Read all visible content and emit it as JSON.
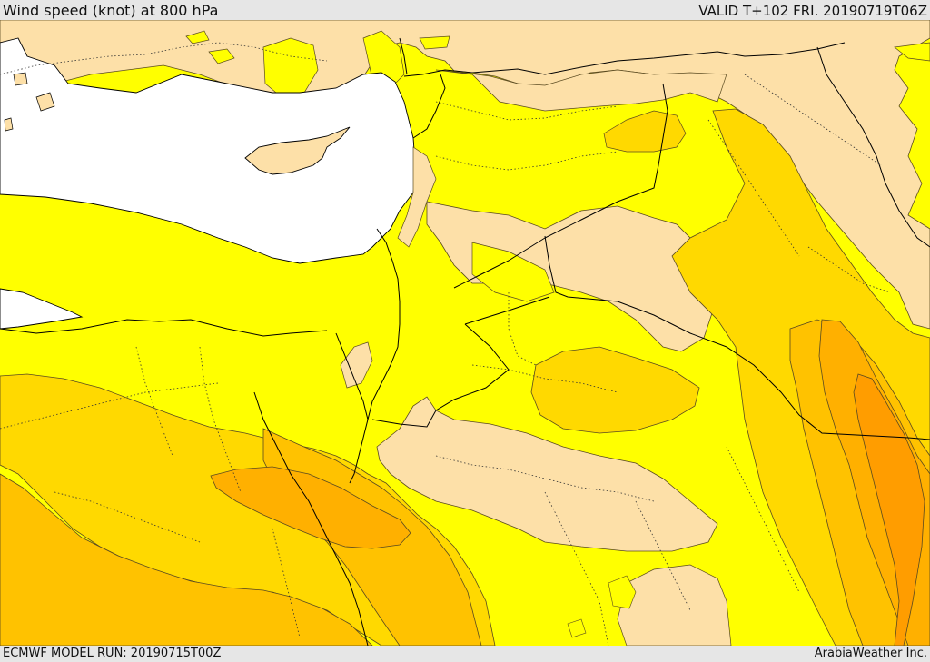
{
  "header": {
    "title": "Wind speed (knot) at 800 hPa",
    "valid_time": "VALID T+102 FRI. 20190719T06Z"
  },
  "footer": {
    "model_run": "ECMWF MODEL RUN: 20190715T00Z",
    "credit": "ArabiaWeather Inc."
  },
  "map": {
    "variable": "wind speed",
    "units": "knot",
    "pressure_level": "800 hPa",
    "shading_colors": {
      "sea": "#ffffff",
      "lowest": "#fde0a8",
      "level_2": "#ffff00",
      "level_3": "#ffd900",
      "level_4": "#ffc200",
      "level_5": "#ffb000",
      "level_6": "#ff9d00"
    },
    "line_colors": {
      "country_border": "#000000",
      "province_border": "#333333",
      "contour": "#5a4a20"
    }
  }
}
